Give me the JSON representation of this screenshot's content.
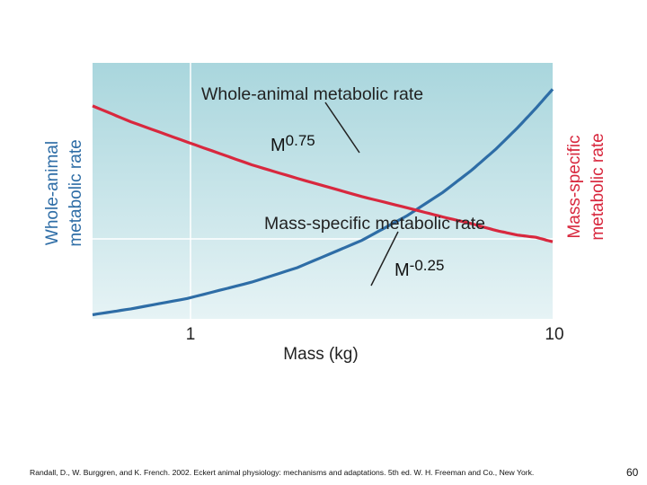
{
  "chart_data": {
    "type": "line",
    "x_scale": "log",
    "xlabel": "Mass (kg)",
    "xlim": [
      0.55,
      10
    ],
    "x_ticks": [
      1,
      10
    ],
    "x_tick_labels": [
      "1",
      "10"
    ],
    "ylabel_left": "Whole-animal metabolic rate",
    "ylabel_right": "Mass-specific metabolic rate",
    "grid": true,
    "series": [
      {
        "name": "Whole-animal metabolic rate",
        "color": "#2e6da6",
        "exponent_base": "M",
        "exponent": "0.75",
        "x": [
          0.55,
          0.7,
          1,
          1.5,
          2,
          3,
          4,
          5,
          6,
          7,
          8,
          9,
          10
        ],
        "y": [
          0.64,
          0.77,
          1.0,
          1.36,
          1.68,
          2.28,
          2.83,
          3.34,
          3.83,
          4.3,
          4.76,
          5.2,
          5.62
        ]
      },
      {
        "name": "Mass-specific metabolic rate",
        "color": "#d8283e",
        "exponent_base": "M",
        "exponent": "-0.25",
        "x": [
          0.55,
          0.7,
          1,
          1.5,
          2,
          3,
          4,
          5,
          6,
          7,
          8,
          9,
          10
        ],
        "y": [
          1.16,
          1.09,
          1.0,
          0.9,
          0.84,
          0.76,
          0.71,
          0.67,
          0.64,
          0.61,
          0.59,
          0.58,
          0.56
        ]
      }
    ]
  },
  "labels": {
    "whole_animal_curve": "Whole-animal metabolic rate",
    "mass_specific_curve": "Mass-specific metabolic rate",
    "whole_exp_base": "M",
    "whole_exp": "0.75",
    "mass_exp_base": "M",
    "mass_exp": "-0.25",
    "axis_left_line1": "Whole-animal",
    "axis_left_line2": "metabolic rate",
    "axis_right_line1": "Mass-specific",
    "axis_right_line2": "metabolic rate",
    "x_axis": "Mass (kg)",
    "x_tick_1": "1",
    "x_tick_10": "10"
  },
  "colors": {
    "blue": "#2e6da6",
    "red": "#d8283e",
    "panel_top": "#a9d6dd",
    "panel_bottom": "#e6f3f5"
  },
  "footer": {
    "citation": "Randall, D., W. Burggren, and K. French. 2002. Eckert animal physiology: mechanisms and adaptations. 5th ed. W. H. Freeman and Co., New York.",
    "page_number": "60"
  }
}
